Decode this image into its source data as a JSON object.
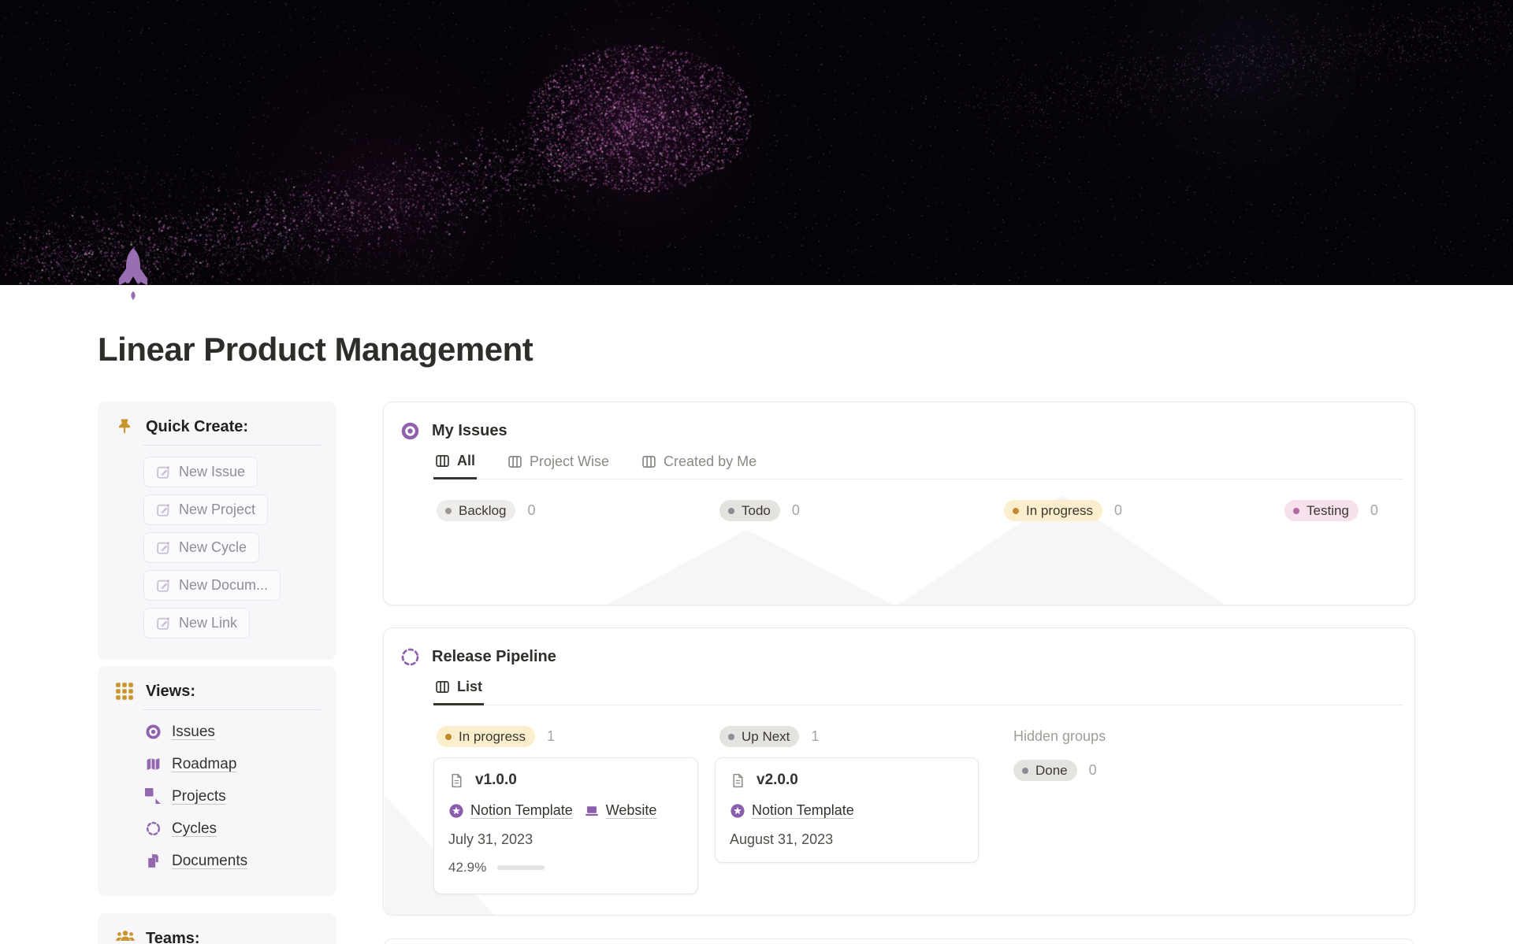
{
  "page": {
    "title": "Linear Product Management"
  },
  "colors": {
    "accent_purple": "#9468b2",
    "rocket_purple": "#996fb4",
    "icon_gold": "#c9962e",
    "sidebar_bg": "#f7f6f9",
    "card_border": "#e9e9e7",
    "pill_gray_bg": "#eeedeb",
    "pill_yellow_bg": "#fbeecd",
    "pill_pink_bg": "#f6e1ec",
    "dot_yellow": "#c08b2d",
    "dot_pink": "#b16ba1",
    "progress_fill": "#807d79",
    "progress_track": "#e4e3e1",
    "cover_magenta": "#c46cbb"
  },
  "sidebar": {
    "quick_create": {
      "heading": "Quick Create:",
      "buttons": [
        "New Issue",
        "New Project",
        "New Cycle",
        "New Docum...",
        "New Link"
      ]
    },
    "views": {
      "heading": "Views:",
      "items": [
        {
          "label": "Issues",
          "icon": "issue-donut-icon"
        },
        {
          "label": "Roadmap",
          "icon": "roadmap-map-icon"
        },
        {
          "label": "Projects",
          "icon": "projects-pie-icon"
        },
        {
          "label": "Cycles",
          "icon": "cycle-dashed-circle-icon"
        },
        {
          "label": "Documents",
          "icon": "documents-pages-icon"
        }
      ]
    },
    "teams": {
      "heading": "Teams:"
    }
  },
  "main": {
    "my_issues": {
      "title": "My Issues",
      "tabs": [
        "All",
        "Project Wise",
        "Created by Me"
      ],
      "active_tab": "All",
      "groups": [
        {
          "label": "Backlog",
          "count": "0"
        },
        {
          "label": "Todo",
          "count": "0"
        },
        {
          "label": "In progress",
          "count": "0"
        },
        {
          "label": "Testing",
          "count": "0"
        }
      ]
    },
    "release_pipeline": {
      "title": "Release Pipeline",
      "tabs": [
        "List"
      ],
      "active_tab": "List",
      "groups": [
        {
          "label": "In progress",
          "count": "1"
        },
        {
          "label": "Up Next",
          "count": "1"
        }
      ],
      "hidden_groups_label": "Hidden groups",
      "hidden_group": {
        "label": "Done",
        "count": "0"
      },
      "cards": [
        {
          "title": "v1.0.0",
          "links": [
            "Notion Template",
            "Website"
          ],
          "date": "July 31, 2023",
          "progress_label": "42.9%",
          "progress_pct": 42.9
        },
        {
          "title": "v2.0.0",
          "links": [
            "Notion Template"
          ],
          "date": "August 31, 2023"
        }
      ]
    }
  }
}
